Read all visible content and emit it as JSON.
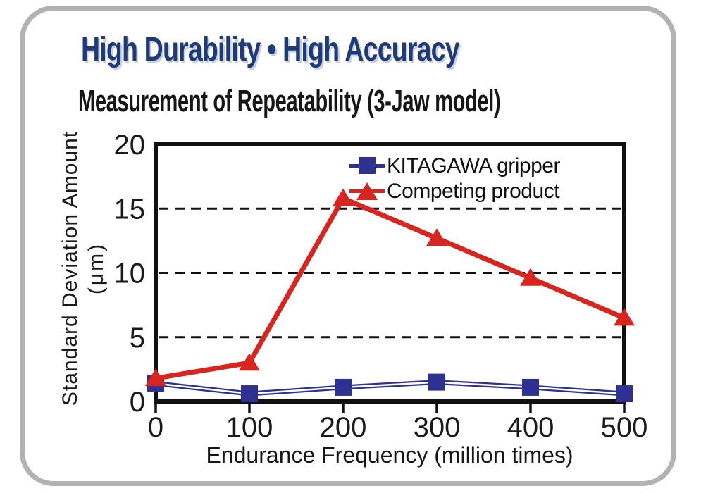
{
  "page": {
    "title": "High Durability • High Accuracy",
    "subtitle": "Measurement of Repeatability (3-Jaw model)"
  },
  "colors": {
    "title_navy": "#1e3a78",
    "card_border_gray": "#b2b2b2",
    "kitagawa_blue": "#2e3192",
    "competitor_red": "#d8251f",
    "axis_black": "#111111"
  },
  "chart_data": {
    "type": "line",
    "title": "Measurement of Repeatability (3-Jaw model)",
    "x": [
      0,
      100,
      200,
      300,
      400,
      500
    ],
    "xlabel": "Endurance Frequency (million times)",
    "ylabel": "Standard Deviation Amount",
    "ylabel_unit": "(μm)",
    "ylim": [
      0,
      20
    ],
    "yticks": [
      0,
      5,
      10,
      15,
      20
    ],
    "gridlines_at": [
      5,
      10,
      15
    ],
    "grid_style": "dashed",
    "legend_position": "top-right-inside",
    "series": [
      {
        "name": "KITAGAWA gripper",
        "color": "#2e3192",
        "marker": "square",
        "double_line": true,
        "values": [
          1.4,
          0.6,
          1.1,
          1.5,
          1.1,
          0.6
        ]
      },
      {
        "name": "Competing product",
        "color": "#d8251f",
        "marker": "triangle",
        "double_line": false,
        "values": [
          1.8,
          3.0,
          15.8,
          12.7,
          9.6,
          6.5
        ]
      }
    ]
  }
}
